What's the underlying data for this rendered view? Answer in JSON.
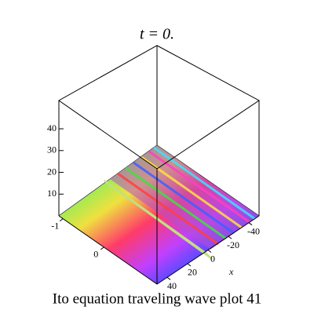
{
  "chart_data": {
    "type": "surface",
    "title": "t = 0.",
    "caption": "Ito equation  traveling wave plot 41",
    "zlim": [
      0,
      53
    ],
    "zticks": [
      10,
      20,
      30,
      40
    ],
    "xlabel": "x",
    "xlim": [
      50,
      -50
    ],
    "xticks": [
      -40,
      -20,
      0,
      20,
      40
    ],
    "ylim": [
      -1.1,
      1.3
    ],
    "yticks": [
      -1,
      0
    ]
  }
}
